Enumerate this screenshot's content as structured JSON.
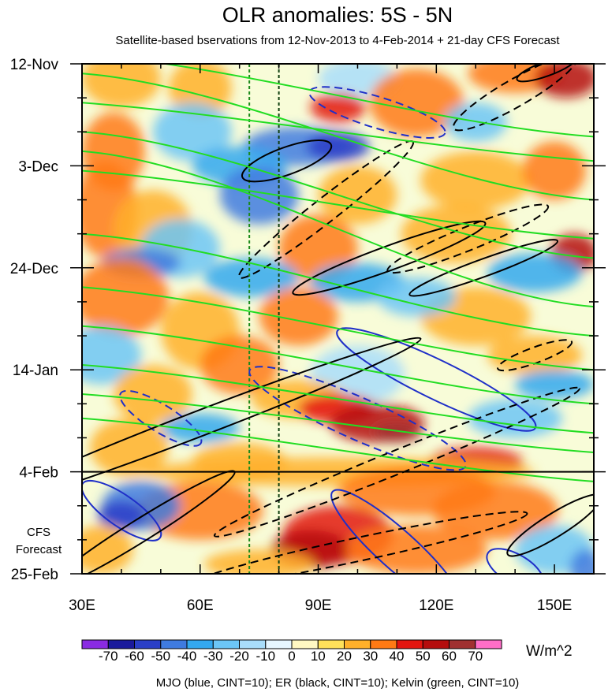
{
  "chart_data": {
    "type": "heatmap",
    "title": "OLR anomalies: 5S - 5N",
    "subtitle": "Satellite-based bservations from 12-Nov-2013 to 4-Feb-2014 + 21-day CFS Forecast",
    "xlabel": "",
    "ylabel": "",
    "x_range": [
      30,
      160
    ],
    "x_unit": "longitude (deg E)",
    "x_ticks": [
      {
        "value": 30,
        "label": "30E"
      },
      {
        "value": 60,
        "label": "60E"
      },
      {
        "value": 90,
        "label": "90E"
      },
      {
        "value": 120,
        "label": "120E"
      },
      {
        "value": 150,
        "label": "150E"
      }
    ],
    "y_range_days": [
      0,
      105
    ],
    "y_unit": "days since 12-Nov-2013 (time increases downward)",
    "y_ticks": [
      {
        "value": 0,
        "label": "12-Nov"
      },
      {
        "value": 21,
        "label": "3-Dec"
      },
      {
        "value": 42,
        "label": "24-Dec"
      },
      {
        "value": 63,
        "label": "14-Jan"
      },
      {
        "value": 84,
        "label": "4-Feb"
      },
      {
        "value": 105,
        "label": "25-Feb"
      }
    ],
    "forecast_start_day": 84,
    "forecast_label": [
      "CFS",
      "Forecast"
    ],
    "reference_longitudes": [
      72.5,
      80
    ],
    "colorbar": {
      "units": "W/m^2",
      "levels": [
        -70,
        -60,
        -50,
        -40,
        -30,
        -20,
        -10,
        0,
        10,
        20,
        30,
        40,
        50,
        60,
        70
      ],
      "colors": [
        "#8a2be2",
        "#1a1a9c",
        "#2a3fc7",
        "#3f7be0",
        "#33a8ef",
        "#6cc6f6",
        "#a9ddfa",
        "#e6f6ff",
        "#fff8c2",
        "#ffe15a",
        "#ffb02a",
        "#ff7a14",
        "#e3150f",
        "#b50d0d",
        "#a03030",
        "#ff6ec7"
      ]
    },
    "contour_caption": "MJO (blue, CINT=10); ER (black, CINT=10); Kelvin (green, CINT=10)",
    "contour_series": [
      {
        "name": "MJO",
        "color": "#1f2fc8",
        "cint": 10
      },
      {
        "name": "ER",
        "color": "#000000",
        "cint": 10
      },
      {
        "name": "Kelvin",
        "color": "#22dd22",
        "cint": 10
      }
    ]
  }
}
